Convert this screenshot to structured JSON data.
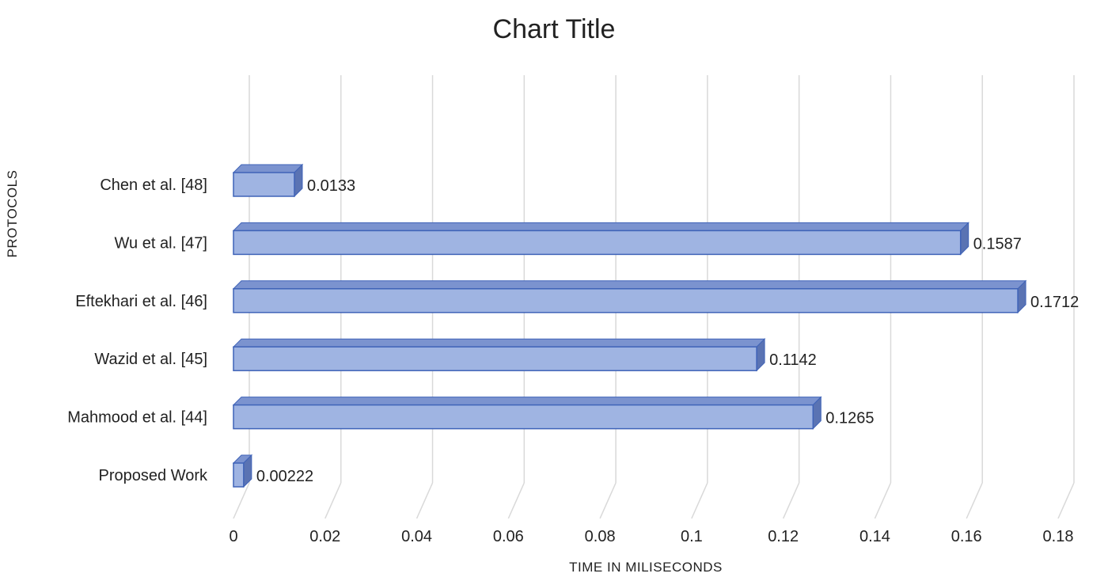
{
  "chart_data": {
    "type": "bar",
    "orientation": "horizontal",
    "style": "3d",
    "title": "Chart Title",
    "xlabel": "TIME IN MILISECONDS",
    "ylabel": "PROTOCOLS",
    "categories": [
      "Proposed Work",
      "Mahmood et al. [44]",
      "Wazid et al. [45]",
      "Eftekhari et al. [46]",
      "Wu et al. [47]",
      "Chen et al. [48]"
    ],
    "values": [
      0.00222,
      0.1265,
      0.1142,
      0.1712,
      0.1587,
      0.0133
    ],
    "data_labels": [
      "0.00222",
      "0.1265",
      "0.1142",
      "0.1712",
      "0.1587",
      "0.0133"
    ],
    "xlim": [
      0,
      0.18
    ],
    "xticks": [
      "0",
      "0.02",
      "0.04",
      "0.06",
      "0.08",
      "0.1",
      "0.12",
      "0.14",
      "0.16",
      "0.18"
    ],
    "grid": true,
    "legend": "none",
    "colors": {
      "bar_face": "#9fb4e2",
      "bar_top": "#7b93cf",
      "bar_side": "#5a73b3",
      "bar_edge": "#3f63b8",
      "grid": "#d9d9d9"
    }
  }
}
